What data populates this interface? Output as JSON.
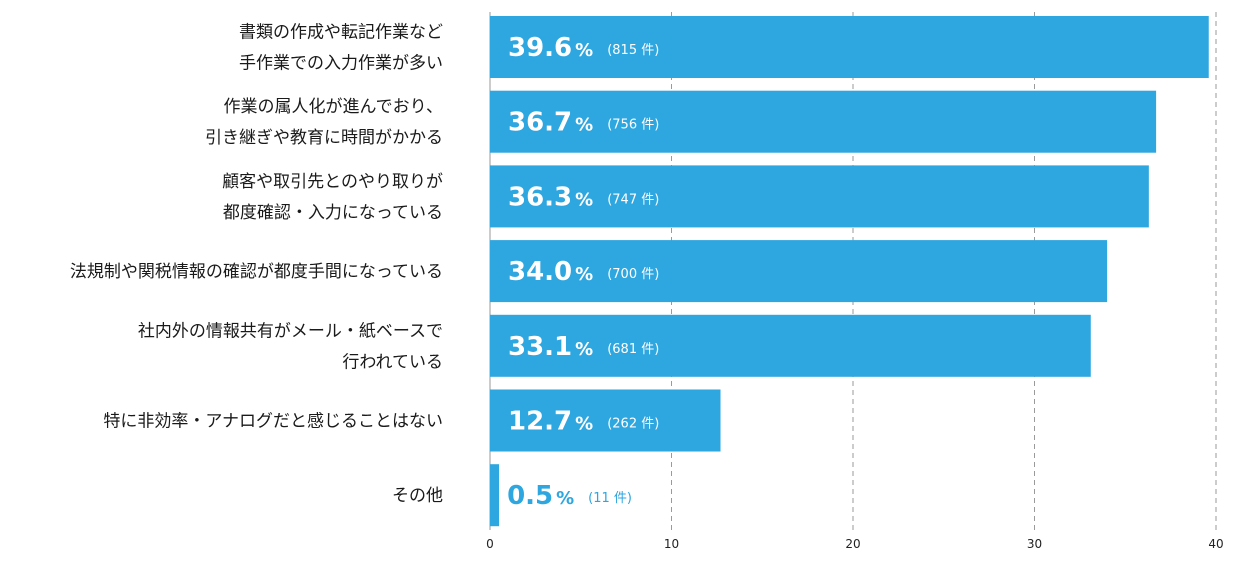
{
  "chart_data": {
    "type": "bar",
    "orientation": "horizontal",
    "categories": [
      [
        "書類の作成や転記作業など",
        "手作業での入力作業が多い"
      ],
      [
        "作業の属人化が進んでおり、",
        "引き継ぎや教育に時間がかかる"
      ],
      [
        "顧客や取引先とのやり取りが",
        "都度確認・入力になっている"
      ],
      [
        "法規制や関税情報の確認が都度手間になっている"
      ],
      [
        "社内外の情報共有がメール・紙ベースで",
        "行われている"
      ],
      [
        "特に非効率・アナログだと感じることはない"
      ],
      [
        "その他"
      ]
    ],
    "values": [
      39.6,
      36.7,
      36.3,
      34.0,
      33.1,
      12.7,
      0.5
    ],
    "value_labels": [
      "39.6",
      "36.7",
      "36.3",
      "34.0",
      "33.1",
      "12.7",
      "0.5"
    ],
    "percent_sign": "%",
    "counts": [
      "(815 件)",
      "(756 件)",
      "(747 件)",
      "(700 件)",
      "(681 件)",
      "(262 件)",
      "(11 件)"
    ],
    "xlim": [
      0,
      40
    ],
    "xticks": [
      0,
      10,
      20,
      30,
      40
    ],
    "grid": true,
    "bar_color": "#2ea6df",
    "label_on_bar_color": "#ffffff",
    "label_outside_color": "#2ea6df"
  }
}
